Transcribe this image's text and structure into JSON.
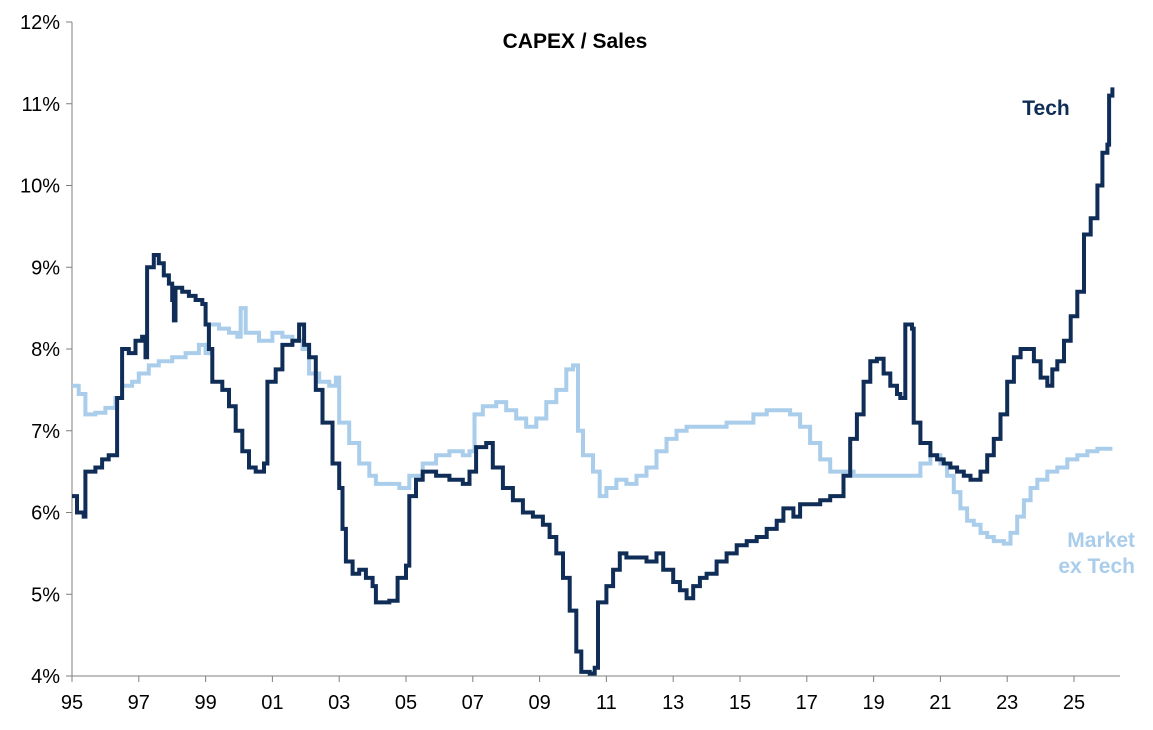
{
  "chart_data": {
    "type": "line",
    "title": "CAPEX / Sales",
    "xlabel": "",
    "ylabel": "",
    "xlim": [
      1995,
      2026.3
    ],
    "ylim": [
      4,
      12
    ],
    "grid": false,
    "legend": "inline labels",
    "y_ticks": [
      4,
      5,
      6,
      7,
      8,
      9,
      10,
      11,
      12
    ],
    "y_tick_labels": [
      "4%",
      "5%",
      "6%",
      "7%",
      "8%",
      "9%",
      "10%",
      "11%",
      "12%"
    ],
    "x_ticks": [
      1995,
      1997,
      1999,
      2001,
      2003,
      2005,
      2007,
      2009,
      2011,
      2013,
      2015,
      2017,
      2019,
      2021,
      2023,
      2025
    ],
    "x_tick_labels": [
      "95",
      "97",
      "99",
      "01",
      "03",
      "05",
      "07",
      "09",
      "11",
      "13",
      "15",
      "17",
      "19",
      "21",
      "23",
      "25"
    ],
    "series": [
      {
        "name": "Tech",
        "label_lines": [
          "Tech"
        ],
        "color": "#0f2d57",
        "points": [
          [
            1995.0,
            6.2
          ],
          [
            1995.15,
            6.0
          ],
          [
            1995.35,
            5.95
          ],
          [
            1995.4,
            6.5
          ],
          [
            1995.7,
            6.55
          ],
          [
            1995.9,
            6.65
          ],
          [
            1996.1,
            6.7
          ],
          [
            1996.35,
            7.4
          ],
          [
            1996.5,
            8.0
          ],
          [
            1996.7,
            7.95
          ],
          [
            1996.9,
            8.1
          ],
          [
            1997.1,
            8.15
          ],
          [
            1997.2,
            7.9
          ],
          [
            1997.25,
            9.0
          ],
          [
            1997.45,
            9.15
          ],
          [
            1997.6,
            9.05
          ],
          [
            1997.75,
            8.9
          ],
          [
            1997.9,
            8.8
          ],
          [
            1998.0,
            8.6
          ],
          [
            1998.05,
            8.35
          ],
          [
            1998.1,
            8.75
          ],
          [
            1998.3,
            8.7
          ],
          [
            1998.5,
            8.65
          ],
          [
            1998.7,
            8.6
          ],
          [
            1998.9,
            8.55
          ],
          [
            1999.0,
            8.3
          ],
          [
            1999.1,
            8.0
          ],
          [
            1999.2,
            7.6
          ],
          [
            1999.5,
            7.5
          ],
          [
            1999.7,
            7.3
          ],
          [
            1999.9,
            7.0
          ],
          [
            2000.1,
            6.75
          ],
          [
            2000.3,
            6.55
          ],
          [
            2000.5,
            6.5
          ],
          [
            2000.75,
            6.6
          ],
          [
            2000.85,
            7.6
          ],
          [
            2001.1,
            7.75
          ],
          [
            2001.3,
            8.05
          ],
          [
            2001.6,
            8.1
          ],
          [
            2001.8,
            8.3
          ],
          [
            2001.95,
            8.05
          ],
          [
            2002.1,
            7.9
          ],
          [
            2002.3,
            7.5
          ],
          [
            2002.5,
            7.1
          ],
          [
            2002.8,
            6.6
          ],
          [
            2003.0,
            6.3
          ],
          [
            2003.1,
            5.8
          ],
          [
            2003.2,
            5.4
          ],
          [
            2003.4,
            5.25
          ],
          [
            2003.6,
            5.3
          ],
          [
            2003.8,
            5.2
          ],
          [
            2004.0,
            5.1
          ],
          [
            2004.1,
            4.9
          ],
          [
            2004.5,
            4.92
          ],
          [
            2004.75,
            5.2
          ],
          [
            2005.0,
            5.35
          ],
          [
            2005.1,
            6.2
          ],
          [
            2005.3,
            6.4
          ],
          [
            2005.5,
            6.5
          ],
          [
            2005.9,
            6.45
          ],
          [
            2006.3,
            6.4
          ],
          [
            2006.7,
            6.35
          ],
          [
            2006.9,
            6.5
          ],
          [
            2007.1,
            6.8
          ],
          [
            2007.4,
            6.85
          ],
          [
            2007.6,
            6.55
          ],
          [
            2007.9,
            6.3
          ],
          [
            2008.2,
            6.15
          ],
          [
            2008.5,
            6.0
          ],
          [
            2008.8,
            5.95
          ],
          [
            2009.1,
            5.85
          ],
          [
            2009.3,
            5.7
          ],
          [
            2009.5,
            5.5
          ],
          [
            2009.7,
            5.2
          ],
          [
            2009.9,
            4.8
          ],
          [
            2010.1,
            4.3
          ],
          [
            2010.25,
            4.05
          ],
          [
            2010.5,
            4.03
          ],
          [
            2010.65,
            4.1
          ],
          [
            2010.75,
            4.9
          ],
          [
            2011.0,
            5.1
          ],
          [
            2011.2,
            5.3
          ],
          [
            2011.4,
            5.5
          ],
          [
            2011.6,
            5.45
          ],
          [
            2011.9,
            5.45
          ],
          [
            2012.2,
            5.4
          ],
          [
            2012.5,
            5.5
          ],
          [
            2012.7,
            5.3
          ],
          [
            2013.0,
            5.15
          ],
          [
            2013.2,
            5.05
          ],
          [
            2013.4,
            4.95
          ],
          [
            2013.6,
            5.1
          ],
          [
            2013.8,
            5.2
          ],
          [
            2014.0,
            5.25
          ],
          [
            2014.3,
            5.4
          ],
          [
            2014.6,
            5.5
          ],
          [
            2014.9,
            5.6
          ],
          [
            2015.2,
            5.65
          ],
          [
            2015.5,
            5.7
          ],
          [
            2015.8,
            5.8
          ],
          [
            2016.1,
            5.9
          ],
          [
            2016.3,
            6.05
          ],
          [
            2016.6,
            5.95
          ],
          [
            2016.8,
            6.1
          ],
          [
            2017.1,
            6.1
          ],
          [
            2017.4,
            6.15
          ],
          [
            2017.7,
            6.2
          ],
          [
            2017.9,
            6.2
          ],
          [
            2018.1,
            6.45
          ],
          [
            2018.3,
            6.9
          ],
          [
            2018.5,
            7.2
          ],
          [
            2018.7,
            7.6
          ],
          [
            2018.9,
            7.85
          ],
          [
            2019.1,
            7.88
          ],
          [
            2019.3,
            7.7
          ],
          [
            2019.5,
            7.55
          ],
          [
            2019.7,
            7.45
          ],
          [
            2019.8,
            7.4
          ],
          [
            2019.9,
            7.4
          ],
          [
            2019.95,
            8.3
          ],
          [
            2020.15,
            8.25
          ],
          [
            2020.2,
            7.1
          ],
          [
            2020.4,
            6.85
          ],
          [
            2020.7,
            6.7
          ],
          [
            2020.9,
            6.65
          ],
          [
            2021.1,
            6.6
          ],
          [
            2021.3,
            6.55
          ],
          [
            2021.5,
            6.5
          ],
          [
            2021.7,
            6.45
          ],
          [
            2021.9,
            6.4
          ],
          [
            2022.2,
            6.5
          ],
          [
            2022.4,
            6.7
          ],
          [
            2022.6,
            6.9
          ],
          [
            2022.8,
            7.2
          ],
          [
            2023.0,
            7.6
          ],
          [
            2023.2,
            7.9
          ],
          [
            2023.4,
            8.0
          ],
          [
            2023.6,
            8.0
          ],
          [
            2023.8,
            7.85
          ],
          [
            2024.0,
            7.65
          ],
          [
            2024.2,
            7.55
          ],
          [
            2024.35,
            7.75
          ],
          [
            2024.5,
            7.85
          ],
          [
            2024.7,
            8.1
          ],
          [
            2024.9,
            8.4
          ],
          [
            2025.1,
            8.7
          ],
          [
            2025.3,
            9.4
          ],
          [
            2025.5,
            9.6
          ],
          [
            2025.7,
            10.0
          ],
          [
            2025.85,
            10.4
          ],
          [
            2026.0,
            10.5
          ],
          [
            2026.05,
            11.1
          ],
          [
            2026.15,
            11.2
          ]
        ]
      },
      {
        "name": "Market ex Tech",
        "label_lines": [
          "Market",
          "ex Tech"
        ],
        "color": "#a9cdea",
        "points": [
          [
            1995.0,
            7.55
          ],
          [
            1995.2,
            7.45
          ],
          [
            1995.4,
            7.2
          ],
          [
            1995.7,
            7.22
          ],
          [
            1996.0,
            7.28
          ],
          [
            1996.3,
            7.4
          ],
          [
            1996.5,
            7.55
          ],
          [
            1996.8,
            7.6
          ],
          [
            1997.0,
            7.7
          ],
          [
            1997.3,
            7.8
          ],
          [
            1997.6,
            7.85
          ],
          [
            1998.0,
            7.9
          ],
          [
            1998.4,
            7.95
          ],
          [
            1998.8,
            8.05
          ],
          [
            1999.0,
            7.95
          ],
          [
            1999.1,
            8.3
          ],
          [
            1999.4,
            8.25
          ],
          [
            1999.7,
            8.2
          ],
          [
            1999.95,
            8.15
          ],
          [
            2000.05,
            8.5
          ],
          [
            2000.2,
            8.2
          ],
          [
            2000.6,
            8.1
          ],
          [
            2001.0,
            8.2
          ],
          [
            2001.3,
            8.15
          ],
          [
            2001.6,
            8.1
          ],
          [
            2001.9,
            8.0
          ],
          [
            2002.1,
            7.7
          ],
          [
            2002.4,
            7.6
          ],
          [
            2002.7,
            7.55
          ],
          [
            2002.9,
            7.65
          ],
          [
            2003.0,
            7.1
          ],
          [
            2003.3,
            6.85
          ],
          [
            2003.6,
            6.6
          ],
          [
            2003.9,
            6.45
          ],
          [
            2004.1,
            6.35
          ],
          [
            2004.4,
            6.35
          ],
          [
            2004.8,
            6.3
          ],
          [
            2005.1,
            6.45
          ],
          [
            2005.5,
            6.6
          ],
          [
            2005.9,
            6.7
          ],
          [
            2006.3,
            6.75
          ],
          [
            2006.7,
            6.7
          ],
          [
            2006.9,
            6.75
          ],
          [
            2007.05,
            7.2
          ],
          [
            2007.3,
            7.3
          ],
          [
            2007.7,
            7.35
          ],
          [
            2008.0,
            7.25
          ],
          [
            2008.3,
            7.15
          ],
          [
            2008.6,
            7.05
          ],
          [
            2008.9,
            7.15
          ],
          [
            2009.2,
            7.35
          ],
          [
            2009.5,
            7.5
          ],
          [
            2009.8,
            7.75
          ],
          [
            2010.0,
            7.8
          ],
          [
            2010.15,
            7.0
          ],
          [
            2010.3,
            6.7
          ],
          [
            2010.6,
            6.5
          ],
          [
            2010.8,
            6.2
          ],
          [
            2011.0,
            6.3
          ],
          [
            2011.3,
            6.4
          ],
          [
            2011.6,
            6.35
          ],
          [
            2011.9,
            6.45
          ],
          [
            2012.2,
            6.55
          ],
          [
            2012.5,
            6.75
          ],
          [
            2012.8,
            6.9
          ],
          [
            2013.1,
            7.0
          ],
          [
            2013.4,
            7.05
          ],
          [
            2013.8,
            7.05
          ],
          [
            2014.2,
            7.05
          ],
          [
            2014.6,
            7.1
          ],
          [
            2015.0,
            7.1
          ],
          [
            2015.4,
            7.2
          ],
          [
            2015.8,
            7.25
          ],
          [
            2016.2,
            7.25
          ],
          [
            2016.5,
            7.2
          ],
          [
            2016.8,
            7.05
          ],
          [
            2017.1,
            6.85
          ],
          [
            2017.4,
            6.65
          ],
          [
            2017.7,
            6.5
          ],
          [
            2018.0,
            6.5
          ],
          [
            2018.4,
            6.45
          ],
          [
            2018.8,
            6.45
          ],
          [
            2019.2,
            6.45
          ],
          [
            2019.6,
            6.45
          ],
          [
            2020.0,
            6.45
          ],
          [
            2020.4,
            6.6
          ],
          [
            2020.7,
            6.7
          ],
          [
            2021.0,
            6.6
          ],
          [
            2021.2,
            6.45
          ],
          [
            2021.4,
            6.25
          ],
          [
            2021.6,
            6.05
          ],
          [
            2021.8,
            5.9
          ],
          [
            2022.0,
            5.85
          ],
          [
            2022.2,
            5.75
          ],
          [
            2022.4,
            5.7
          ],
          [
            2022.6,
            5.65
          ],
          [
            2022.9,
            5.62
          ],
          [
            2023.1,
            5.75
          ],
          [
            2023.3,
            5.95
          ],
          [
            2023.5,
            6.15
          ],
          [
            2023.7,
            6.3
          ],
          [
            2023.9,
            6.4
          ],
          [
            2024.2,
            6.5
          ],
          [
            2024.5,
            6.55
          ],
          [
            2024.8,
            6.65
          ],
          [
            2025.1,
            6.7
          ],
          [
            2025.4,
            6.75
          ],
          [
            2025.7,
            6.78
          ],
          [
            2026.0,
            6.78
          ],
          [
            2026.15,
            6.78
          ]
        ]
      }
    ]
  }
}
